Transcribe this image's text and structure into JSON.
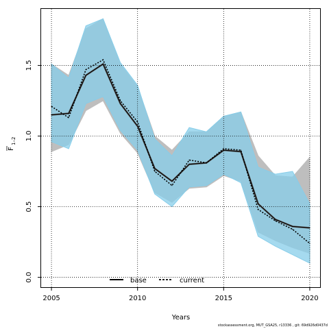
{
  "chart_data": {
    "type": "line",
    "title": "",
    "xlabel": "Years",
    "ylabel_main": "F",
    "ylabel_sub": "1–2",
    "xlim": [
      2004.4,
      2020.6
    ],
    "ylim": [
      -0.07,
      1.9
    ],
    "xticks": [
      2005,
      2010,
      2015,
      2020
    ],
    "yticks": [
      0.0,
      0.5,
      1.0,
      1.5
    ],
    "ytick_labels": [
      "0.0",
      "0.5",
      "1.0",
      "1.5"
    ],
    "grid": true,
    "legend_position": "bottom",
    "x": [
      2005,
      2006,
      2007,
      2008,
      2009,
      2010,
      2011,
      2012,
      2013,
      2014,
      2015,
      2016,
      2017,
      2018,
      2019,
      2020
    ],
    "series": [
      {
        "name": "base",
        "line_style": "solid",
        "line_color": "#000000",
        "band_color": "#bebebe",
        "values": [
          1.15,
          1.16,
          1.43,
          1.51,
          1.23,
          1.07,
          0.77,
          0.68,
          0.8,
          0.81,
          0.9,
          0.89,
          0.52,
          0.41,
          0.36,
          0.35
        ],
        "upper": [
          1.51,
          1.43,
          1.76,
          1.83,
          1.51,
          1.35,
          1.0,
          0.9,
          1.03,
          1.03,
          1.14,
          1.17,
          0.86,
          0.72,
          0.71,
          0.85
        ],
        "lower": [
          0.89,
          0.94,
          1.18,
          1.25,
          1.02,
          0.88,
          0.6,
          0.53,
          0.63,
          0.64,
          0.72,
          0.68,
          0.32,
          0.26,
          0.21,
          0.17
        ]
      },
      {
        "name": "current",
        "line_style": "dotted",
        "line_color": "#000000",
        "band_color": "#87cde9",
        "values": [
          1.21,
          1.13,
          1.47,
          1.54,
          1.25,
          1.1,
          0.75,
          0.65,
          0.83,
          0.81,
          0.91,
          0.9,
          0.48,
          0.4,
          0.34,
          0.24
        ],
        "upper": [
          1.51,
          1.41,
          1.78,
          1.83,
          1.52,
          1.36,
          0.98,
          0.86,
          1.06,
          1.03,
          1.14,
          1.17,
          0.78,
          0.73,
          0.75,
          0.52
        ],
        "lower": [
          0.96,
          0.91,
          1.23,
          1.28,
          1.04,
          0.9,
          0.59,
          0.5,
          0.64,
          0.65,
          0.73,
          0.67,
          0.29,
          0.22,
          0.16,
          0.1
        ]
      }
    ]
  },
  "caption": "stockassessment.org, MUT_GSA25, r13336 , git: 69d926d0437d"
}
